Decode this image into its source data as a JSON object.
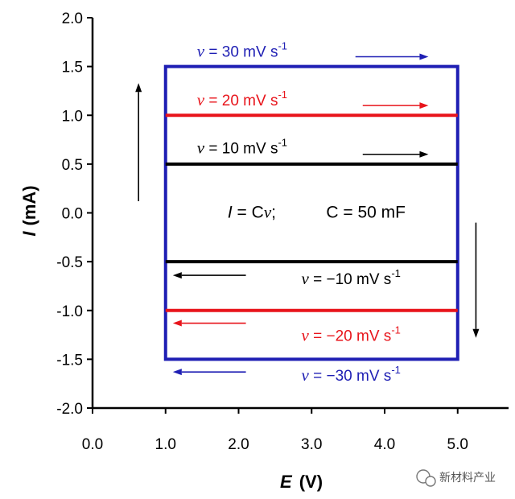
{
  "chart_data": {
    "type": "line",
    "title": "",
    "xlabel": {
      "symbol": "E",
      "unit": "(V)"
    },
    "ylabel": {
      "symbol": "I",
      "unit": "(mA)"
    },
    "xlim": [
      0.0,
      5.5
    ],
    "ylim": [
      -2.0,
      2.0
    ],
    "x_ticks": [
      {
        "value": 0,
        "label": "0.0"
      },
      {
        "value": 1,
        "label": "1.0"
      },
      {
        "value": 2,
        "label": "2.0"
      },
      {
        "value": 3,
        "label": "3.0"
      },
      {
        "value": 4,
        "label": "4.0"
      },
      {
        "value": 5,
        "label": "5.0"
      }
    ],
    "y_ticks": [
      {
        "value": 2.0,
        "label": "2.0"
      },
      {
        "value": 1.5,
        "label": "1.5"
      },
      {
        "value": 1.0,
        "label": "1.0"
      },
      {
        "value": 0.5,
        "label": "0.5"
      },
      {
        "value": 0.0,
        "label": "0.0"
      },
      {
        "value": -0.5,
        "label": "-0.5"
      },
      {
        "value": -1.0,
        "label": "-1.0"
      },
      {
        "value": -1.5,
        "label": "-1.5"
      },
      {
        "value": -2.0,
        "label": "-2.0"
      }
    ],
    "grid": false,
    "series": [
      {
        "name": "30 mV s-1",
        "color": "#1f1fb4",
        "closed": true,
        "x": [
          1.0,
          5.0,
          5.0,
          1.0
        ],
        "y": [
          1.5,
          1.5,
          -1.5,
          -1.5
        ]
      },
      {
        "name": "20 mV s-1",
        "color": "#e8141b",
        "closed": false,
        "x": [
          1.0,
          5.0
        ],
        "y": [
          1.0,
          1.0
        ]
      },
      {
        "name": "-20 mV s-1",
        "color": "#e8141b",
        "closed": false,
        "x": [
          1.0,
          5.0
        ],
        "y": [
          -1.0,
          -1.0
        ]
      },
      {
        "name": "10 mV s-1",
        "color": "#000000",
        "closed": false,
        "x": [
          1.0,
          5.0
        ],
        "y": [
          0.5,
          0.5
        ]
      },
      {
        "name": "-10 mV s-1",
        "color": "#000000",
        "closed": false,
        "x": [
          1.0,
          5.0
        ],
        "y": [
          -0.5,
          -0.5
        ]
      }
    ],
    "annotations": [
      {
        "nu": "v",
        "text": " = 30 mV s",
        "sup": "-1",
        "color": "#1f1fb4",
        "x": 1.43,
        "y": 1.6
      },
      {
        "nu": "v",
        "text": " = 20 mV s",
        "sup": "-1",
        "color": "#e8141b",
        "x": 1.43,
        "y": 1.1
      },
      {
        "nu": "v",
        "text": " = 10 mV s",
        "sup": "-1",
        "color": "#000000",
        "x": 1.43,
        "y": 0.61
      },
      {
        "nu": "v",
        "text": " = −10 mV s",
        "sup": "-1",
        "color": "#000000",
        "x": 2.86,
        "y": -0.73
      },
      {
        "nu": "v",
        "text": " = −20 mV s",
        "sup": "-1",
        "color": "#e8141b",
        "x": 2.86,
        "y": -1.31
      },
      {
        "nu": "v",
        "text": " = −30 mV s",
        "sup": "-1",
        "color": "#1f1fb4",
        "x": 2.86,
        "y": -1.72
      }
    ],
    "arrows": [
      {
        "color": "#1f1fb4",
        "x1": 3.6,
        "y1": 1.6,
        "x2": 4.6,
        "y2": 1.6
      },
      {
        "color": "#e8141b",
        "x1": 3.7,
        "y1": 1.1,
        "x2": 4.6,
        "y2": 1.1
      },
      {
        "color": "#000000",
        "x1": 3.7,
        "y1": 0.6,
        "x2": 4.6,
        "y2": 0.6
      },
      {
        "color": "#000000",
        "x1": 2.1,
        "y1": -0.64,
        "x2": 1.1,
        "y2": -0.64
      },
      {
        "color": "#e8141b",
        "x1": 2.1,
        "y1": -1.13,
        "x2": 1.1,
        "y2": -1.13
      },
      {
        "color": "#1f1fb4",
        "x1": 2.1,
        "y1": -1.63,
        "x2": 1.1,
        "y2": -1.63
      },
      {
        "color": "#000000",
        "x1": 0.63,
        "y1": 0.12,
        "x2": 0.63,
        "y2": 1.33
      },
      {
        "color": "#000000",
        "x1": 5.25,
        "y1": -0.1,
        "x2": 5.25,
        "y2": -1.28
      }
    ],
    "equation": {
      "left": {
        "var": "I",
        "mid": " = C",
        "nu": "v",
        "end": ";"
      },
      "right": "C = 50 mF",
      "x_left": 1.85,
      "x_right": 3.2,
      "y": -0.05
    }
  },
  "watermark": {
    "text": "新材料产业",
    "icon": "wechat-icon"
  }
}
